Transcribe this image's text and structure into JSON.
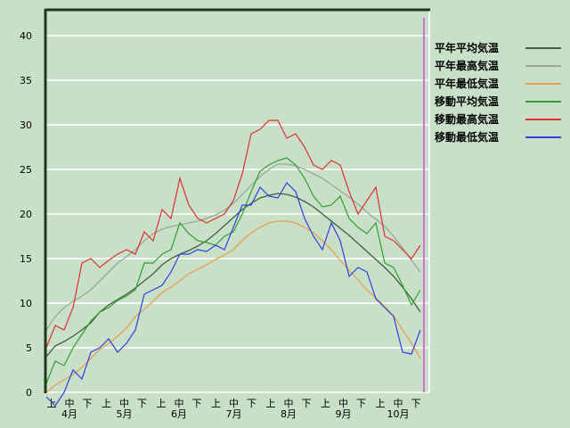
{
  "chart_data": {
    "type": "line",
    "title": "",
    "xlabel": "",
    "ylabel": "",
    "ylim": [
      0,
      40
    ],
    "yticks": [
      "0",
      "5",
      "10",
      "15",
      "20",
      "25",
      "30",
      "35",
      "40"
    ],
    "grid": true,
    "legend_placement": "top-right",
    "x_tick_labels": [
      "上",
      "中",
      "下",
      "上",
      "中",
      "下",
      "上",
      "中",
      "下",
      "上",
      "中",
      "下",
      "上",
      "中",
      "下",
      "上",
      "中",
      "下",
      "上",
      "中",
      "下"
    ],
    "month_labels": [
      "4月",
      "5月",
      "6月",
      "7月",
      "8月",
      "9月",
      "10月"
    ],
    "x": [
      "04-01",
      "04-06",
      "04-11",
      "04-16",
      "04-21",
      "04-26",
      "05-01",
      "05-06",
      "05-11",
      "05-16",
      "05-21",
      "05-26",
      "05-31",
      "06-05",
      "06-10",
      "06-15",
      "06-20",
      "06-25",
      "06-30",
      "07-05",
      "07-10",
      "07-15",
      "07-20",
      "07-25",
      "07-30",
      "08-04",
      "08-09",
      "08-14",
      "08-19",
      "08-24",
      "08-29",
      "09-03",
      "09-08",
      "09-13",
      "09-18",
      "09-23",
      "09-28",
      "10-03",
      "10-08",
      "10-13",
      "10-18",
      "10-23",
      "10-28"
    ],
    "series": [
      {
        "name": "平年平均気温",
        "color": "#3f5f3f",
        "values": [
          4.0,
          5.2,
          5.7,
          6.3,
          7.0,
          7.8,
          9.0,
          9.8,
          10.4,
          11.0,
          11.7,
          12.5,
          13.3,
          14.3,
          15.0,
          15.5,
          15.9,
          16.4,
          17.0,
          17.8,
          18.7,
          19.6,
          20.5,
          21.2,
          21.8,
          22.1,
          22.3,
          22.2,
          21.9,
          21.4,
          20.8,
          20.0,
          19.2,
          18.4,
          17.6,
          16.7,
          15.8,
          14.9,
          14.0,
          13.0,
          11.8,
          10.5,
          9.0
        ]
      },
      {
        "name": "平年最高気温",
        "color": "#9aa79a",
        "values": [
          7.0,
          8.5,
          9.5,
          10.2,
          10.8,
          11.5,
          12.5,
          13.5,
          14.5,
          15.2,
          16.0,
          17.0,
          17.8,
          18.3,
          18.6,
          18.8,
          19.0,
          19.2,
          19.5,
          19.9,
          20.4,
          21.2,
          22.2,
          23.2,
          24.2,
          25.0,
          25.6,
          25.6,
          25.4,
          25.0,
          24.5,
          24.0,
          23.3,
          22.6,
          21.9,
          21.1,
          20.2,
          19.4,
          18.6,
          17.5,
          16.2,
          14.8,
          13.5
        ]
      },
      {
        "name": "平年最低気温",
        "color": "#e8a050",
        "values": [
          0.0,
          0.8,
          1.4,
          2.0,
          2.8,
          3.8,
          4.8,
          5.5,
          6.3,
          7.2,
          8.5,
          9.3,
          10.2,
          11.2,
          11.8,
          12.5,
          13.3,
          13.8,
          14.3,
          14.9,
          15.4,
          16.0,
          17.0,
          17.9,
          18.5,
          19.0,
          19.2,
          19.2,
          19.0,
          18.5,
          17.9,
          17.0,
          16.0,
          14.8,
          13.7,
          12.6,
          11.5,
          10.6,
          9.6,
          8.6,
          7.0,
          5.5,
          3.8
        ]
      },
      {
        "name": "移動平均気温",
        "color": "#30a030",
        "values": [
          1.0,
          3.5,
          3.0,
          5.0,
          6.5,
          8.0,
          9.0,
          9.5,
          10.3,
          10.8,
          11.5,
          14.5,
          14.5,
          15.5,
          16.0,
          19.0,
          17.8,
          17.0,
          16.8,
          16.5,
          17.5,
          18.0,
          20.0,
          22.5,
          24.8,
          25.5,
          26.0,
          26.3,
          25.5,
          24.0,
          22.0,
          20.8,
          21.0,
          22.0,
          19.5,
          18.5,
          17.8,
          19.0,
          14.5,
          14.0,
          12.0,
          9.8,
          11.5
        ]
      },
      {
        "name": "移動最高気温",
        "color": "#e03030",
        "values": [
          5.0,
          7.5,
          7.0,
          9.5,
          14.5,
          15.0,
          14.0,
          14.8,
          15.5,
          16.0,
          15.5,
          18.0,
          17.0,
          20.5,
          19.5,
          24.0,
          21.0,
          19.5,
          19.0,
          19.5,
          20.0,
          21.5,
          24.5,
          29.0,
          29.5,
          30.5,
          30.5,
          28.5,
          29.0,
          27.5,
          25.5,
          25.0,
          26.0,
          25.5,
          22.5,
          20.0,
          21.5,
          23.0,
          17.5,
          17.0,
          16.0,
          15.0,
          16.5
        ]
      },
      {
        "name": "移動最低気温",
        "color": "#3040e0",
        "values": [
          -0.5,
          -1.5,
          0.0,
          2.5,
          1.5,
          4.5,
          5.0,
          6.0,
          4.5,
          5.5,
          7.0,
          11.0,
          11.5,
          12.0,
          13.5,
          15.5,
          15.5,
          16.0,
          15.8,
          16.5,
          16.0,
          18.5,
          21.0,
          21.0,
          23.0,
          22.0,
          21.8,
          23.5,
          22.5,
          19.5,
          17.5,
          16.0,
          19.0,
          17.0,
          13.0,
          14.0,
          13.5,
          10.5,
          9.5,
          8.5,
          4.5,
          4.3,
          7.0
        ]
      }
    ],
    "colors": {
      "background": "#c8dfc8",
      "axis": "#1a3a1a",
      "grid": "#ffffff",
      "marker_line": "#d070d0"
    }
  }
}
